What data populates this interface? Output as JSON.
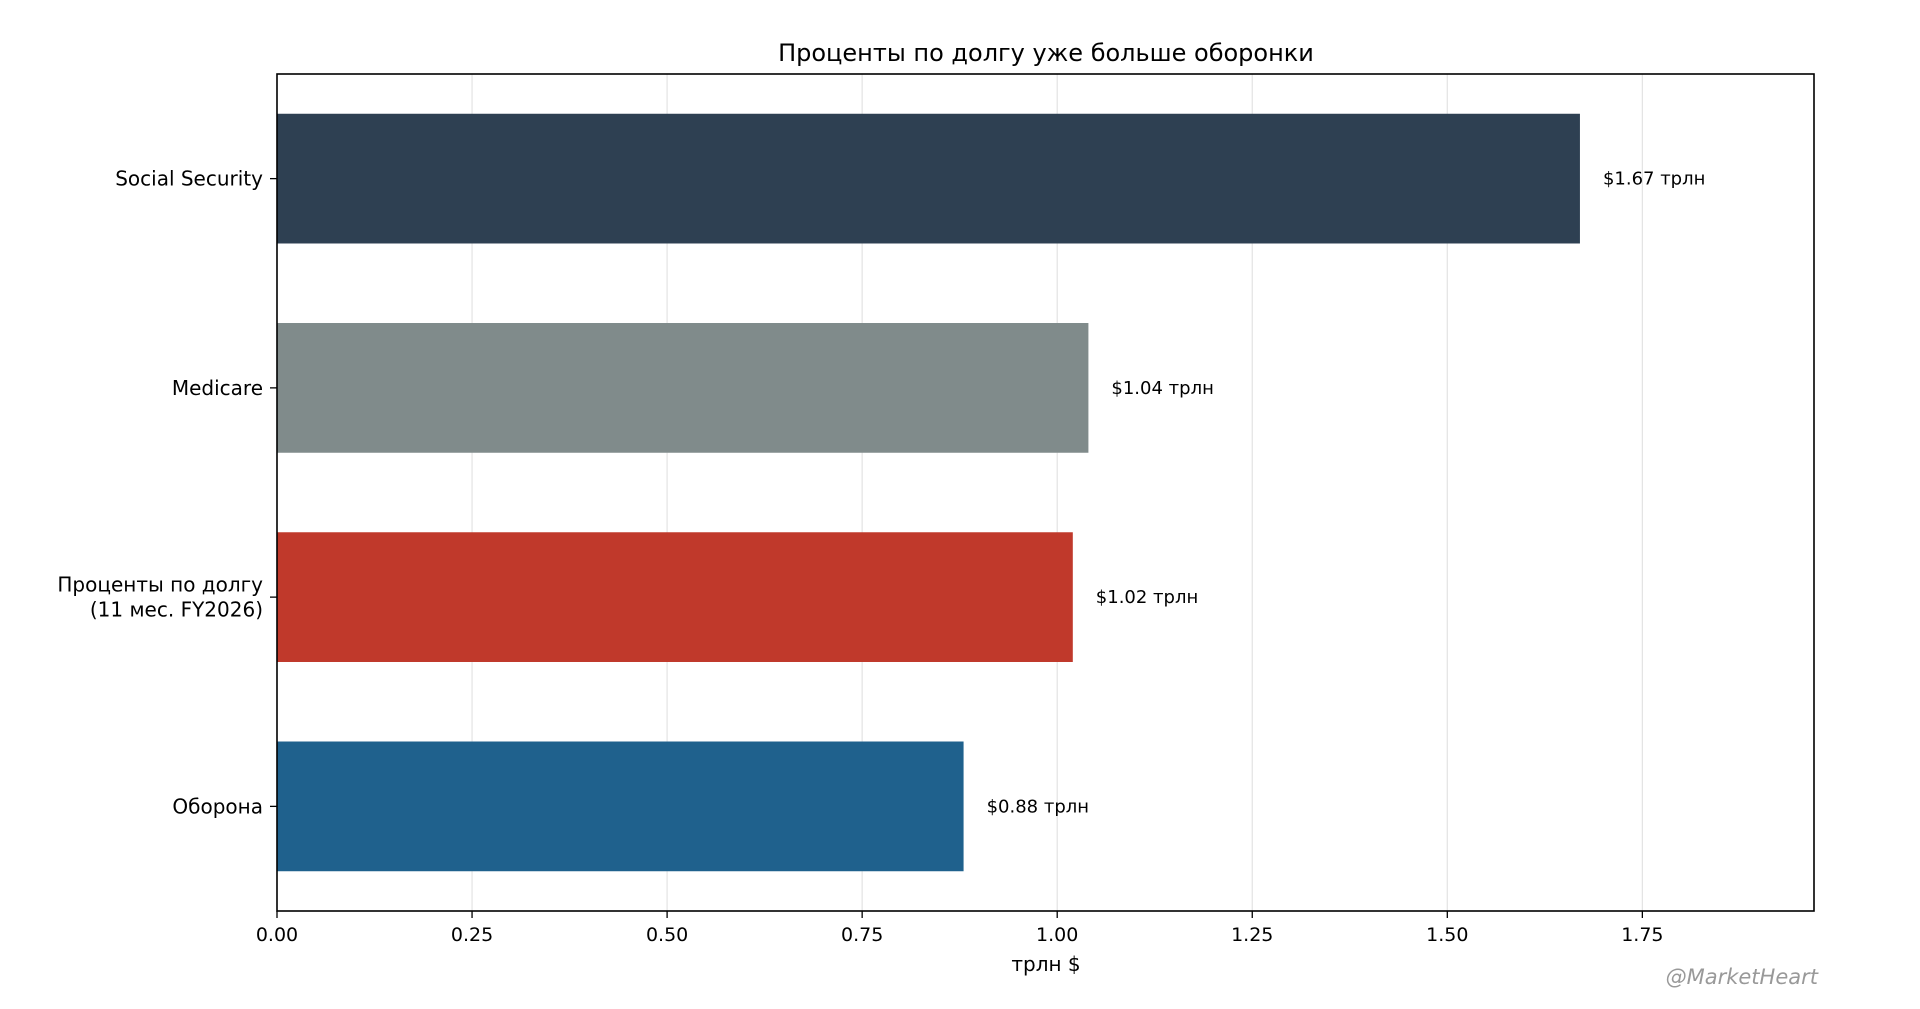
{
  "chart_data": {
    "type": "bar",
    "orientation": "horizontal",
    "title": "Проценты по долгу уже больше оборонки",
    "xlabel": "трлн $",
    "ylabel": "",
    "xlim": [
      0,
      1.97
    ],
    "x_ticks": [
      0.0,
      0.25,
      0.5,
      0.75,
      1.0,
      1.25,
      1.5,
      1.75
    ],
    "x_tick_labels": [
      "0.00",
      "0.25",
      "0.50",
      "0.75",
      "1.00",
      "1.25",
      "1.50",
      "1.75"
    ],
    "grid": "x",
    "categories": [
      [
        "Social Security"
      ],
      [
        "Medicare"
      ],
      [
        "Проценты по долгу",
        "(11 мес. FY2026)"
      ],
      [
        "Оборона"
      ]
    ],
    "values": [
      1.67,
      1.04,
      1.02,
      0.88
    ],
    "data_labels": [
      "$1.67 трлн",
      "$1.04 трлн",
      "$1.02 трлн",
      "$0.88 трлн"
    ],
    "colors": [
      "#2e4052",
      "#808b8b",
      "#c0392b",
      "#1f618d"
    ]
  },
  "watermark": "@MarketHeart"
}
